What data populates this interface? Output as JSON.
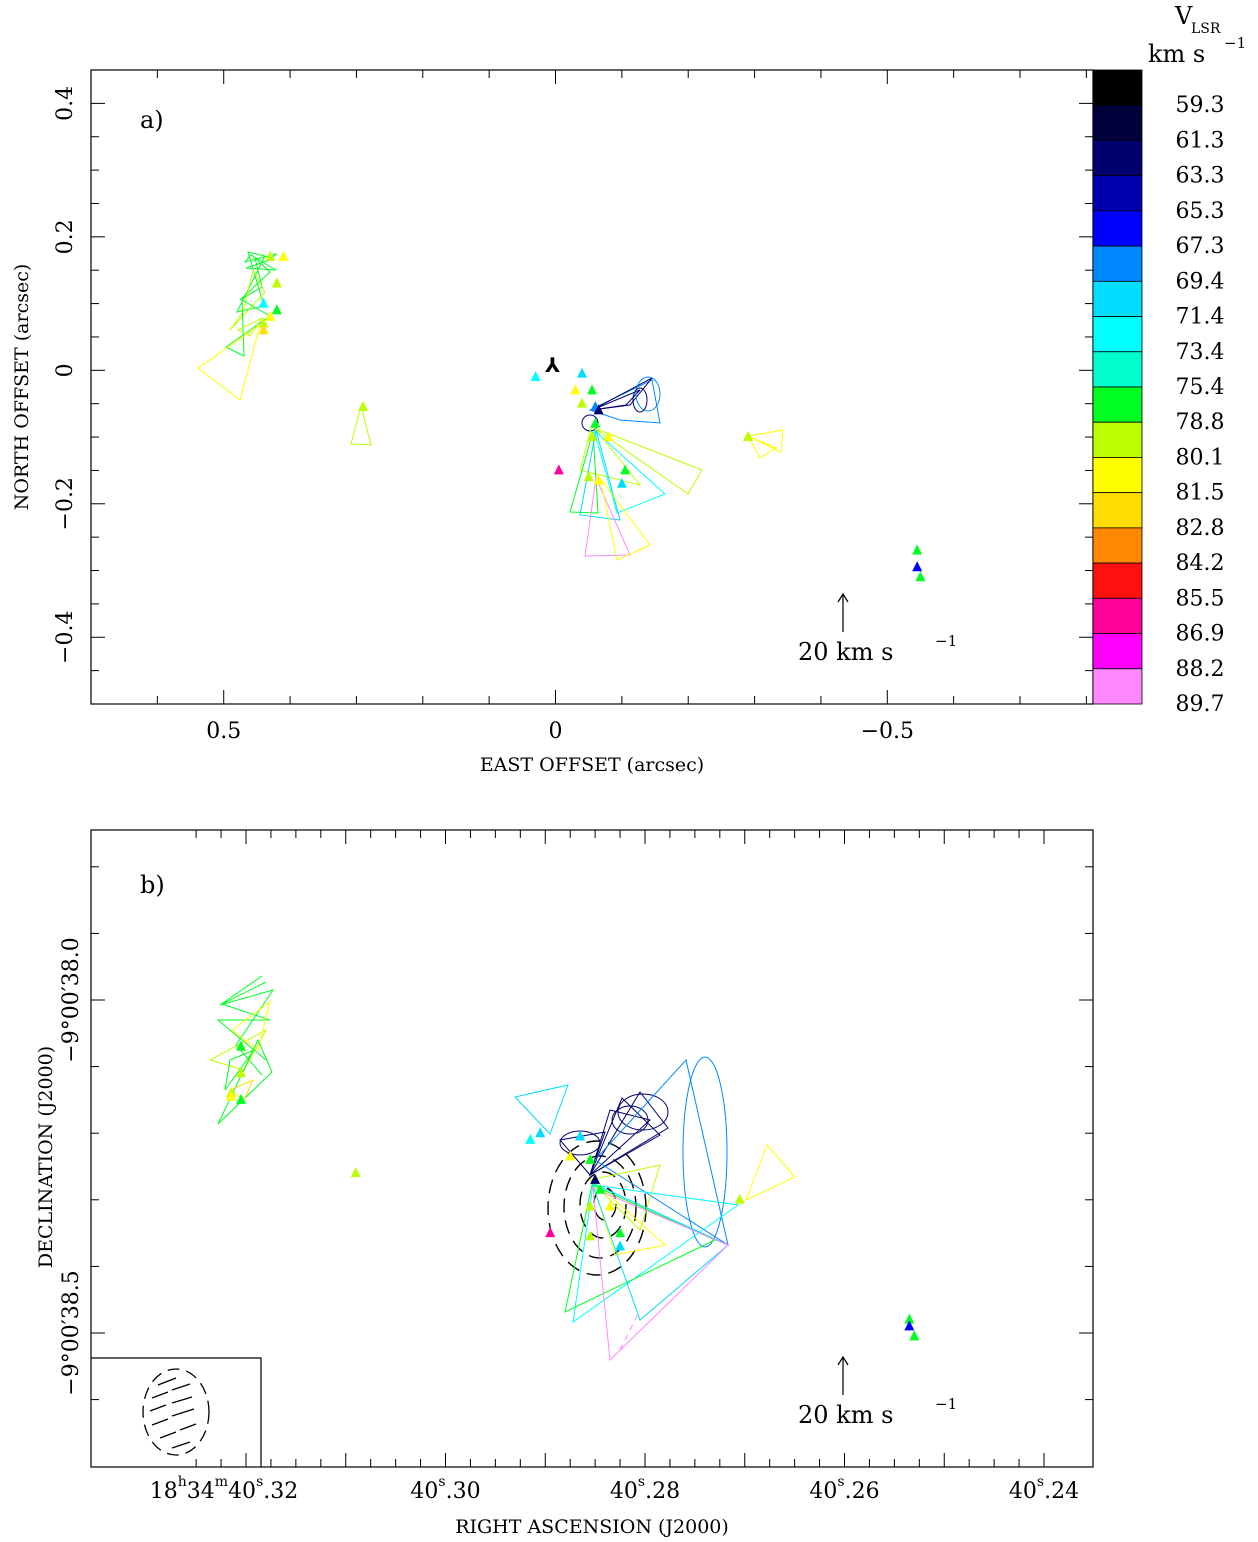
{
  "colorbar": {
    "title_main": "V",
    "title_sub": "LSR",
    "units": "km s",
    "units_exp": "−1",
    "levels": [
      {
        "label": "59.3",
        "color": "#000000"
      },
      {
        "label": "61.3",
        "color": "#00003a"
      },
      {
        "label": "63.3",
        "color": "#00006e"
      },
      {
        "label": "65.3",
        "color": "#0000b0"
      },
      {
        "label": "67.3",
        "color": "#0000ff"
      },
      {
        "label": "69.4",
        "color": "#0088ff"
      },
      {
        "label": "71.4",
        "color": "#00ddff"
      },
      {
        "label": "73.4",
        "color": "#00ffff"
      },
      {
        "label": "75.4",
        "color": "#00ffcc"
      },
      {
        "label": "78.8",
        "color": "#00ff22"
      },
      {
        "label": "80.1",
        "color": "#bbff00"
      },
      {
        "label": "81.5",
        "color": "#ffff00"
      },
      {
        "label": "82.8",
        "color": "#ffdd00"
      },
      {
        "label": "84.2",
        "color": "#ff8800"
      },
      {
        "label": "85.5",
        "color": "#ff1010"
      },
      {
        "label": "86.9",
        "color": "#ff0099"
      },
      {
        "label": "88.2",
        "color": "#ff00ff"
      },
      {
        "label": "89.7",
        "color": "#ff88ff"
      }
    ]
  },
  "chart_data": [
    {
      "type": "scatter",
      "panel_label": "a)",
      "xlabel": "EAST OFFSET (arcsec)",
      "ylabel": "NORTH OFFSET (arcsec)",
      "xlim": [
        0.7,
        -0.81
      ],
      "ylim": [
        -0.5,
        0.45
      ],
      "x_tick_labels": [
        "0.5",
        "0",
        "−0.5"
      ],
      "x_tick_values": [
        0.5,
        0,
        -0.5
      ],
      "y_tick_labels": [
        "0.4",
        "0.2",
        "0",
        "−0.2",
        "−0.4"
      ],
      "y_tick_values": [
        0.4,
        0.2,
        0,
        -0.2,
        -0.4
      ],
      "scale_arrow": {
        "value": 20,
        "label": "20  km s",
        "exp": "−1"
      },
      "maser_spots": [
        {
          "x": 0.43,
          "y": 0.17,
          "v": 80.1
        },
        {
          "x": 0.41,
          "y": 0.17,
          "v": 81.5
        },
        {
          "x": 0.42,
          "y": 0.13,
          "v": 80.1
        },
        {
          "x": 0.44,
          "y": 0.1,
          "v": 73.4
        },
        {
          "x": 0.42,
          "y": 0.09,
          "v": 78.8
        },
        {
          "x": 0.43,
          "y": 0.08,
          "v": 81.5
        },
        {
          "x": 0.44,
          "y": 0.07,
          "v": 80.1
        },
        {
          "x": 0.44,
          "y": 0.06,
          "v": 82.8
        },
        {
          "x": 0.29,
          "y": -0.055,
          "v": 80.1
        },
        {
          "x": 0.03,
          "y": -0.01,
          "v": 73.4
        },
        {
          "x": -0.04,
          "y": -0.005,
          "v": 71.4
        },
        {
          "x": -0.03,
          "y": -0.03,
          "v": 81.5
        },
        {
          "x": -0.055,
          "y": -0.03,
          "v": 78.8
        },
        {
          "x": -0.04,
          "y": -0.05,
          "v": 80.1
        },
        {
          "x": -0.06,
          "y": -0.055,
          "v": 69.4
        },
        {
          "x": -0.065,
          "y": -0.06,
          "v": 63.3
        },
        {
          "x": -0.06,
          "y": -0.08,
          "v": 78.8
        },
        {
          "x": -0.055,
          "y": -0.1,
          "v": 80.1
        },
        {
          "x": -0.08,
          "y": -0.1,
          "v": 81.5
        },
        {
          "x": -0.005,
          "y": -0.15,
          "v": 86.9
        },
        {
          "x": -0.105,
          "y": -0.15,
          "v": 78.8
        },
        {
          "x": -0.05,
          "y": -0.16,
          "v": 80.1
        },
        {
          "x": -0.065,
          "y": -0.165,
          "v": 81.5
        },
        {
          "x": -0.1,
          "y": -0.17,
          "v": 71.4
        },
        {
          "x": -0.29,
          "y": -0.1,
          "v": 80.1
        },
        {
          "x": -0.545,
          "y": -0.27,
          "v": 78.8
        },
        {
          "x": -0.545,
          "y": -0.295,
          "v": 67.3
        },
        {
          "x": -0.55,
          "y": -0.31,
          "v": 78.8
        }
      ]
    },
    {
      "type": "scatter",
      "panel_label": "b)",
      "xlabel": "RIGHT ASCENSION (J2000)",
      "ylabel": "DECLINATION (J2000)",
      "x_tick_labels": [
        {
          "h": "18",
          "m": "34",
          "s": "40",
          "frac": ".32"
        },
        {
          "s": "40",
          "frac": ".30"
        },
        {
          "s": "40",
          "frac": ".28"
        },
        {
          "s": "40",
          "frac": ".26"
        },
        {
          "s": "40",
          "frac": ".24"
        }
      ],
      "y_tick_labels": [
        {
          "deg": "−9°00′38",
          "frac": ".0"
        },
        {
          "deg": "−9°00′38",
          "frac": ".5"
        }
      ],
      "scale_arrow": {
        "value": 20,
        "label": "20  km s",
        "exp": "−1"
      },
      "maser_spots": [
        {
          "ra": 40.3205,
          "dec": 38.07,
          "v": 78.8
        },
        {
          "ra": 40.3205,
          "dec": 38.11,
          "v": 80.1
        },
        {
          "ra": 40.3215,
          "dec": 38.14,
          "v": 80.1
        },
        {
          "ra": 40.3205,
          "dec": 38.15,
          "v": 78.8
        },
        {
          "ra": 40.3215,
          "dec": 38.145,
          "v": 81.5
        },
        {
          "ra": 40.309,
          "dec": 38.26,
          "v": 80.1
        },
        {
          "ra": 40.2915,
          "dec": 38.21,
          "v": 73.4
        },
        {
          "ra": 40.2905,
          "dec": 38.2,
          "v": 71.4
        },
        {
          "ra": 40.2865,
          "dec": 38.205,
          "v": 71.4
        },
        {
          "ra": 40.2875,
          "dec": 38.235,
          "v": 81.5
        },
        {
          "ra": 40.2855,
          "dec": 38.24,
          "v": 78.8
        },
        {
          "ra": 40.285,
          "dec": 38.27,
          "v": 63.3
        },
        {
          "ra": 40.2845,
          "dec": 38.285,
          "v": 78.8
        },
        {
          "ra": 40.2835,
          "dec": 38.31,
          "v": 81.5
        },
        {
          "ra": 40.2855,
          "dec": 38.31,
          "v": 80.1
        },
        {
          "ra": 40.2895,
          "dec": 38.35,
          "v": 86.9
        },
        {
          "ra": 40.2855,
          "dec": 38.355,
          "v": 80.1
        },
        {
          "ra": 40.2825,
          "dec": 38.35,
          "v": 78.8
        },
        {
          "ra": 40.2825,
          "dec": 38.37,
          "v": 71.4
        },
        {
          "ra": 40.2705,
          "dec": 38.3,
          "v": 80.1
        },
        {
          "ra": 40.2535,
          "dec": 38.48,
          "v": 78.8
        },
        {
          "ra": 40.2535,
          "dec": 38.49,
          "v": 67.3
        },
        {
          "ra": 40.253,
          "dec": 38.505,
          "v": 78.8
        }
      ]
    }
  ]
}
